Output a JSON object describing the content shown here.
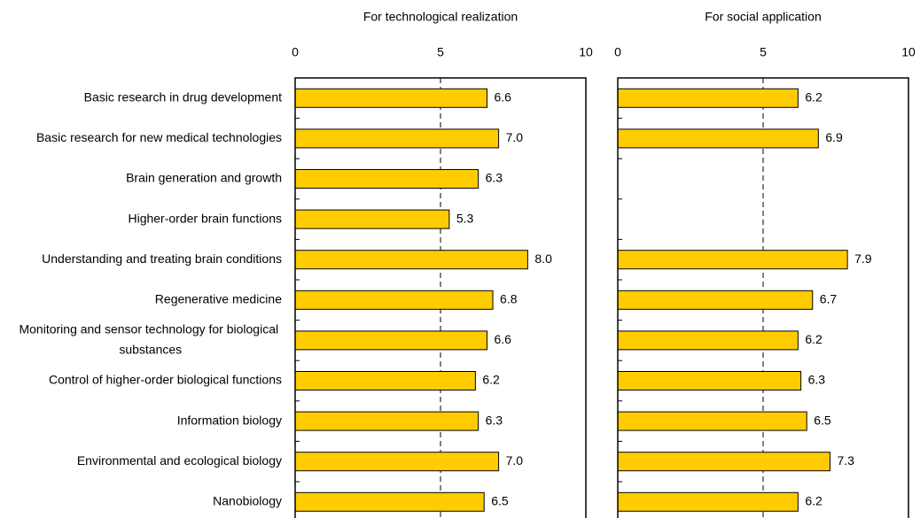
{
  "chart_data": [
    {
      "type": "bar",
      "orientation": "horizontal",
      "title": "For technological realization",
      "categories": [
        "Basic research in drug development",
        "Basic research for new medical technologies",
        "Brain generation and growth",
        "Higher-order brain functions",
        "Understanding and treating brain conditions",
        "Regenerative medicine",
        "Monitoring and sensor technology for biological substances",
        "Control of higher-order biological functions",
        "Information biology",
        "Environmental and ecological biology",
        "Nanobiology"
      ],
      "values": [
        6.6,
        7.0,
        6.3,
        5.3,
        8.0,
        6.8,
        6.6,
        6.2,
        6.3,
        7.0,
        6.5
      ],
      "value_labels": [
        "6.6",
        "7.0",
        "6.3",
        "5.3",
        "8.0",
        "6.8",
        "6.6",
        "6.2",
        "6.3",
        "7.0",
        "6.5"
      ],
      "color": "#ffcc00",
      "xlim": [
        0,
        10
      ],
      "xticks": [
        0,
        5,
        10
      ],
      "grid": true
    },
    {
      "type": "bar",
      "orientation": "horizontal",
      "title": "For social application",
      "values": [
        6.2,
        6.9,
        null,
        null,
        7.9,
        6.7,
        6.2,
        6.3,
        6.5,
        7.3,
        6.2
      ],
      "value_labels": [
        "6.2",
        "6.9",
        null,
        null,
        "7.9",
        "6.7",
        "6.2",
        "6.3",
        "6.5",
        "7.3",
        "6.2"
      ],
      "color": "#ffcc00",
      "xlim": [
        0,
        10
      ],
      "xticks": [
        0,
        5,
        10
      ],
      "grid": true
    }
  ]
}
